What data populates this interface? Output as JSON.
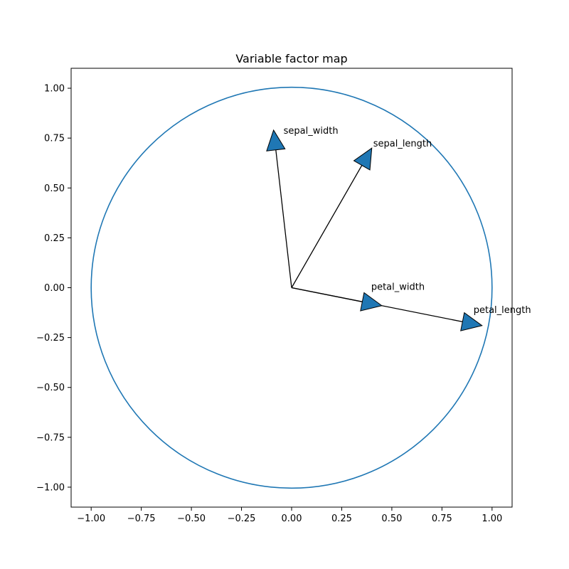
{
  "chart_data": {
    "type": "scatter",
    "title": "Variable factor map",
    "xlabel": "",
    "ylabel": "",
    "xlim": [
      -1.1,
      1.1
    ],
    "ylim": [
      -1.1,
      1.1
    ],
    "grid": false,
    "circle": {
      "center": [
        0,
        0
      ],
      "radius": 1.0,
      "color": "#1f77b4"
    },
    "vectors": [
      {
        "name": "sepal_length",
        "x": 0.4,
        "y": 0.7
      },
      {
        "name": "sepal_width",
        "x": -0.09,
        "y": 0.79
      },
      {
        "name": "petal_length",
        "x": 0.95,
        "y": -0.19
      },
      {
        "name": "petal_width",
        "x": 0.45,
        "y": -0.09
      }
    ],
    "arrow_color": "#1f77b4",
    "xticks": [
      "−1.00",
      "−0.75",
      "−0.50",
      "−0.25",
      "0.00",
      "0.25",
      "0.50",
      "0.75",
      "1.00"
    ],
    "yticks": [
      "1.00",
      "0.75",
      "0.50",
      "0.25",
      "0.00",
      "−0.25",
      "−0.50",
      "−0.75",
      "−1.00"
    ]
  }
}
